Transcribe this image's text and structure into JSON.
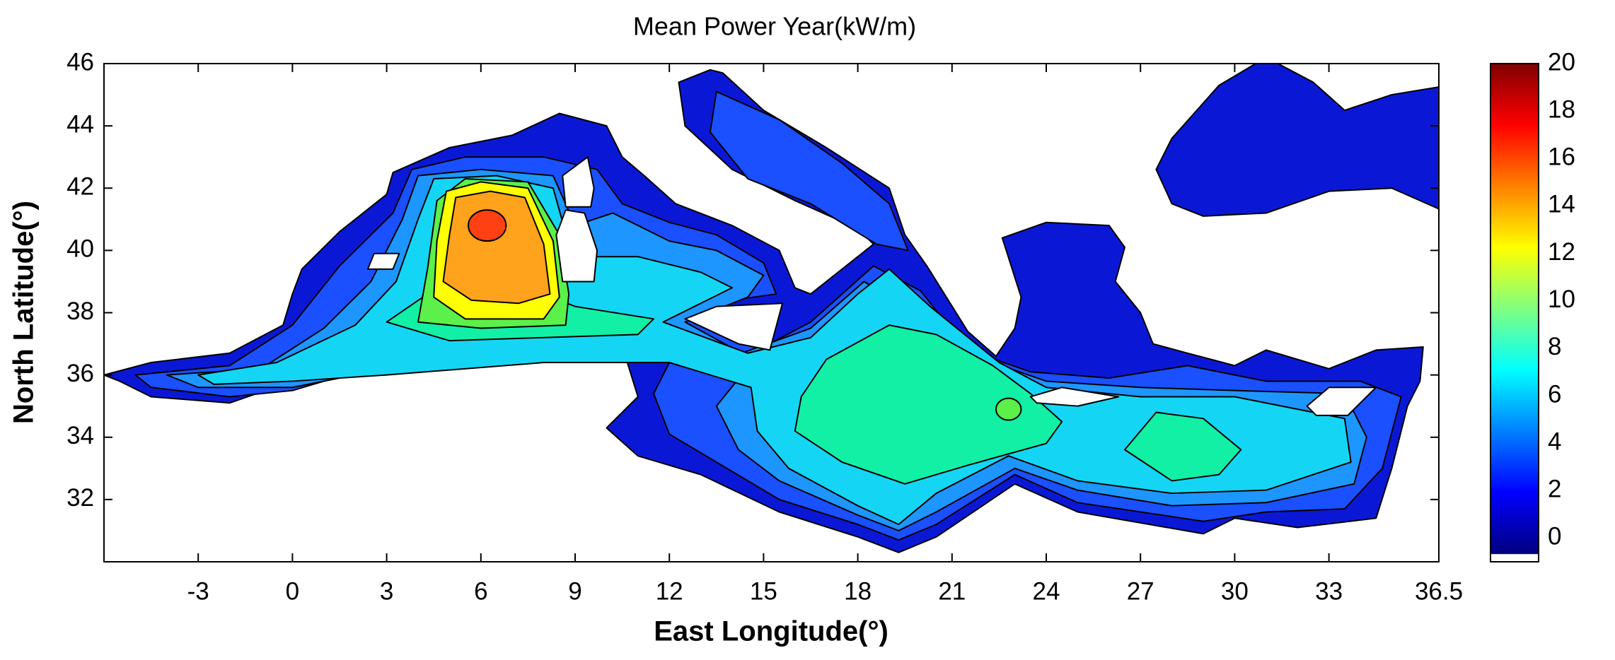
{
  "chart_data": {
    "type": "contour",
    "title": "Mean Power Year(kW/m)",
    "xlabel": "East Longitude(°)",
    "ylabel": "North Latitude(°)",
    "xlim": [
      -6,
      36.5
    ],
    "ylim": [
      30,
      46
    ],
    "xticks": [
      -3,
      0,
      3,
      6,
      9,
      12,
      15,
      18,
      21,
      24,
      27,
      30,
      33,
      36.5
    ],
    "yticks": [
      32,
      34,
      36,
      38,
      40,
      42,
      44,
      46
    ],
    "colormap": "jet",
    "clim": [
      -1,
      20
    ],
    "cticks": [
      0,
      2,
      4,
      6,
      8,
      10,
      12,
      14,
      16,
      18,
      20
    ]
  }
}
